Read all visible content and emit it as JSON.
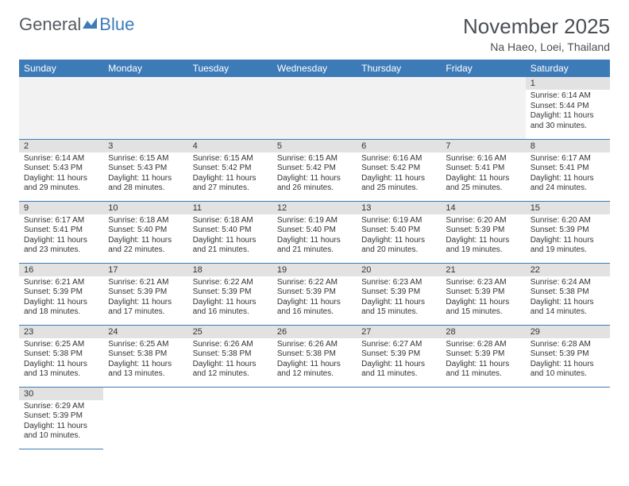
{
  "logo": {
    "text1": "General",
    "text2": "Blue"
  },
  "title": "November 2025",
  "location": "Na Haeo, Loei, Thailand",
  "colors": {
    "header_bg": "#3d7bb8",
    "header_text": "#ffffff",
    "daynum_bg": "#e2e2e2",
    "empty_bg": "#f2f2f2",
    "border": "#3d7bb8",
    "title_color": "#4a4f54"
  },
  "weekdays": [
    "Sunday",
    "Monday",
    "Tuesday",
    "Wednesday",
    "Thursday",
    "Friday",
    "Saturday"
  ],
  "first_weekday_index": 6,
  "days": [
    {
      "n": 1,
      "sunrise": "6:14 AM",
      "sunset": "5:44 PM",
      "daylight": "11 hours and 30 minutes."
    },
    {
      "n": 2,
      "sunrise": "6:14 AM",
      "sunset": "5:43 PM",
      "daylight": "11 hours and 29 minutes."
    },
    {
      "n": 3,
      "sunrise": "6:15 AM",
      "sunset": "5:43 PM",
      "daylight": "11 hours and 28 minutes."
    },
    {
      "n": 4,
      "sunrise": "6:15 AM",
      "sunset": "5:42 PM",
      "daylight": "11 hours and 27 minutes."
    },
    {
      "n": 5,
      "sunrise": "6:15 AM",
      "sunset": "5:42 PM",
      "daylight": "11 hours and 26 minutes."
    },
    {
      "n": 6,
      "sunrise": "6:16 AM",
      "sunset": "5:42 PM",
      "daylight": "11 hours and 25 minutes."
    },
    {
      "n": 7,
      "sunrise": "6:16 AM",
      "sunset": "5:41 PM",
      "daylight": "11 hours and 25 minutes."
    },
    {
      "n": 8,
      "sunrise": "6:17 AM",
      "sunset": "5:41 PM",
      "daylight": "11 hours and 24 minutes."
    },
    {
      "n": 9,
      "sunrise": "6:17 AM",
      "sunset": "5:41 PM",
      "daylight": "11 hours and 23 minutes."
    },
    {
      "n": 10,
      "sunrise": "6:18 AM",
      "sunset": "5:40 PM",
      "daylight": "11 hours and 22 minutes."
    },
    {
      "n": 11,
      "sunrise": "6:18 AM",
      "sunset": "5:40 PM",
      "daylight": "11 hours and 21 minutes."
    },
    {
      "n": 12,
      "sunrise": "6:19 AM",
      "sunset": "5:40 PM",
      "daylight": "11 hours and 21 minutes."
    },
    {
      "n": 13,
      "sunrise": "6:19 AM",
      "sunset": "5:40 PM",
      "daylight": "11 hours and 20 minutes."
    },
    {
      "n": 14,
      "sunrise": "6:20 AM",
      "sunset": "5:39 PM",
      "daylight": "11 hours and 19 minutes."
    },
    {
      "n": 15,
      "sunrise": "6:20 AM",
      "sunset": "5:39 PM",
      "daylight": "11 hours and 19 minutes."
    },
    {
      "n": 16,
      "sunrise": "6:21 AM",
      "sunset": "5:39 PM",
      "daylight": "11 hours and 18 minutes."
    },
    {
      "n": 17,
      "sunrise": "6:21 AM",
      "sunset": "5:39 PM",
      "daylight": "11 hours and 17 minutes."
    },
    {
      "n": 18,
      "sunrise": "6:22 AM",
      "sunset": "5:39 PM",
      "daylight": "11 hours and 16 minutes."
    },
    {
      "n": 19,
      "sunrise": "6:22 AM",
      "sunset": "5:39 PM",
      "daylight": "11 hours and 16 minutes."
    },
    {
      "n": 20,
      "sunrise": "6:23 AM",
      "sunset": "5:39 PM",
      "daylight": "11 hours and 15 minutes."
    },
    {
      "n": 21,
      "sunrise": "6:23 AM",
      "sunset": "5:39 PM",
      "daylight": "11 hours and 15 minutes."
    },
    {
      "n": 22,
      "sunrise": "6:24 AM",
      "sunset": "5:38 PM",
      "daylight": "11 hours and 14 minutes."
    },
    {
      "n": 23,
      "sunrise": "6:25 AM",
      "sunset": "5:38 PM",
      "daylight": "11 hours and 13 minutes."
    },
    {
      "n": 24,
      "sunrise": "6:25 AM",
      "sunset": "5:38 PM",
      "daylight": "11 hours and 13 minutes."
    },
    {
      "n": 25,
      "sunrise": "6:26 AM",
      "sunset": "5:38 PM",
      "daylight": "11 hours and 12 minutes."
    },
    {
      "n": 26,
      "sunrise": "6:26 AM",
      "sunset": "5:38 PM",
      "daylight": "11 hours and 12 minutes."
    },
    {
      "n": 27,
      "sunrise": "6:27 AM",
      "sunset": "5:39 PM",
      "daylight": "11 hours and 11 minutes."
    },
    {
      "n": 28,
      "sunrise": "6:28 AM",
      "sunset": "5:39 PM",
      "daylight": "11 hours and 11 minutes."
    },
    {
      "n": 29,
      "sunrise": "6:28 AM",
      "sunset": "5:39 PM",
      "daylight": "11 hours and 10 minutes."
    },
    {
      "n": 30,
      "sunrise": "6:29 AM",
      "sunset": "5:39 PM",
      "daylight": "11 hours and 10 minutes."
    }
  ],
  "labels": {
    "sunrise_prefix": "Sunrise: ",
    "sunset_prefix": "Sunset: ",
    "daylight_prefix": "Daylight: "
  }
}
